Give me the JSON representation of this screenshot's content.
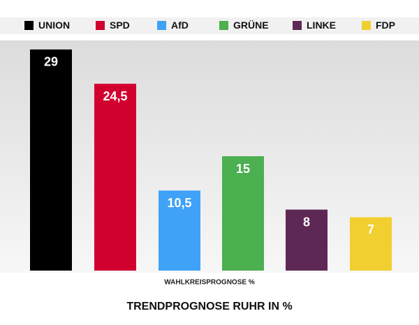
{
  "chart_data": {
    "type": "bar",
    "title": "TRENDPROGNOSE RUHR IN %",
    "x_label": "WAHLKREISPROGNOSE %",
    "categories": [
      "UNION",
      "SPD",
      "AfD",
      "GRÜNE",
      "LINKE",
      "FDP"
    ],
    "values": [
      29,
      24.5,
      10.5,
      15,
      8,
      7
    ],
    "value_labels": [
      "29",
      "24,5",
      "10,5",
      "15",
      "8",
      "7"
    ],
    "colors": [
      "#000000",
      "#d1002f",
      "#3fa2f7",
      "#4caf50",
      "#5e2856",
      "#f2cf30"
    ],
    "ylim": [
      0,
      30
    ]
  }
}
